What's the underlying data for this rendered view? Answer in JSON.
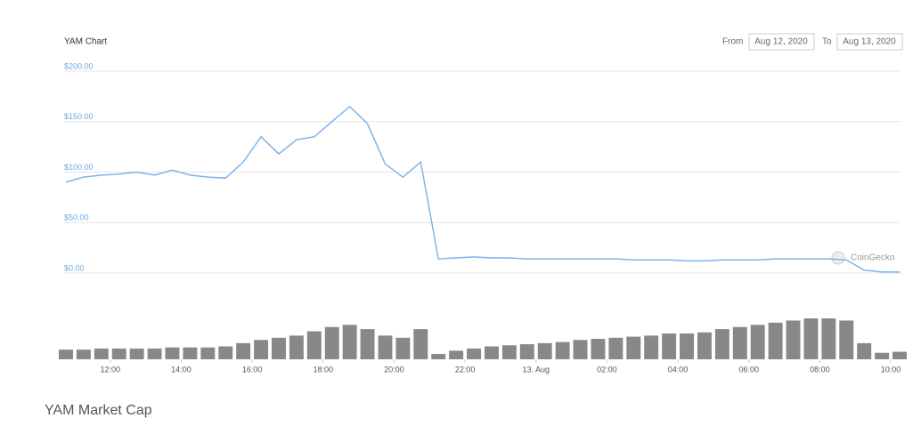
{
  "chart_data": {
    "type": "line",
    "title": "YAM Chart",
    "caption": "YAM Market Cap",
    "range_from_label": "From",
    "range_from": "Aug 12, 2020",
    "range_to_label": "To",
    "range_to": "Aug 13, 2020",
    "credit": "CoinGecko",
    "x": [
      10.75,
      11.25,
      11.75,
      12.25,
      12.75,
      13.25,
      13.75,
      14.25,
      14.75,
      15.25,
      15.75,
      16.25,
      16.75,
      17.25,
      17.75,
      18.25,
      18.75,
      19.25,
      19.75,
      20.25,
      20.75,
      21.25,
      21.75,
      22.25,
      22.75,
      23.25,
      23.75,
      24.25,
      24.75,
      25.25,
      25.75,
      26.25,
      26.75,
      27.25,
      27.75,
      28.25,
      28.75,
      29.25,
      29.75,
      30.25,
      30.75,
      31.25,
      31.75,
      32.25,
      32.75,
      33.25,
      33.75,
      34.25
    ],
    "series": [
      {
        "color": "#7cb5ec",
        "values": [
          90,
          95,
          97,
          98,
          100,
          97,
          102,
          97,
          95,
          94,
          110,
          135,
          118,
          132,
          135,
          150,
          165,
          148,
          108,
          95,
          110,
          14,
          15,
          16,
          15,
          15,
          14,
          14,
          14,
          14,
          14,
          14,
          13,
          13,
          13,
          12,
          12,
          13,
          13,
          13,
          14,
          14,
          14,
          14,
          13,
          3,
          1,
          1
        ]
      }
    ],
    "volume": {
      "color": "#888888",
      "values": [
        9,
        9,
        10,
        10,
        10,
        10,
        11,
        11,
        11,
        12,
        15,
        18,
        20,
        22,
        26,
        30,
        32,
        28,
        22,
        20,
        28,
        5,
        8,
        10,
        12,
        13,
        14,
        15,
        16,
        18,
        19,
        20,
        21,
        22,
        24,
        24,
        25,
        28,
        30,
        32,
        34,
        36,
        38,
        38,
        36,
        15,
        6,
        7
      ]
    },
    "xlim": [
      10.7,
      34.3
    ],
    "xticks": [
      {
        "value": 12,
        "label": "12:00"
      },
      {
        "value": 14,
        "label": "14:00"
      },
      {
        "value": 16,
        "label": "16:00"
      },
      {
        "value": 18,
        "label": "18:00"
      },
      {
        "value": 20,
        "label": "20:00"
      },
      {
        "value": 22,
        "label": "22:00"
      },
      {
        "value": 24,
        "label": "13. Aug"
      },
      {
        "value": 26,
        "label": "02:00"
      },
      {
        "value": 28,
        "label": "04:00"
      },
      {
        "value": 30,
        "label": "06:00"
      },
      {
        "value": 32,
        "label": "08:00"
      },
      {
        "value": 34,
        "label": "10:00"
      }
    ],
    "ylim": [
      0,
      200
    ],
    "yticks": [
      {
        "value": 0,
        "label": "$0.00"
      },
      {
        "value": 50,
        "label": "$50.00"
      },
      {
        "value": 100,
        "label": "$100.00"
      },
      {
        "value": 150,
        "label": "$150.00"
      },
      {
        "value": 200,
        "label": "$200.00"
      }
    ],
    "grid": true
  }
}
